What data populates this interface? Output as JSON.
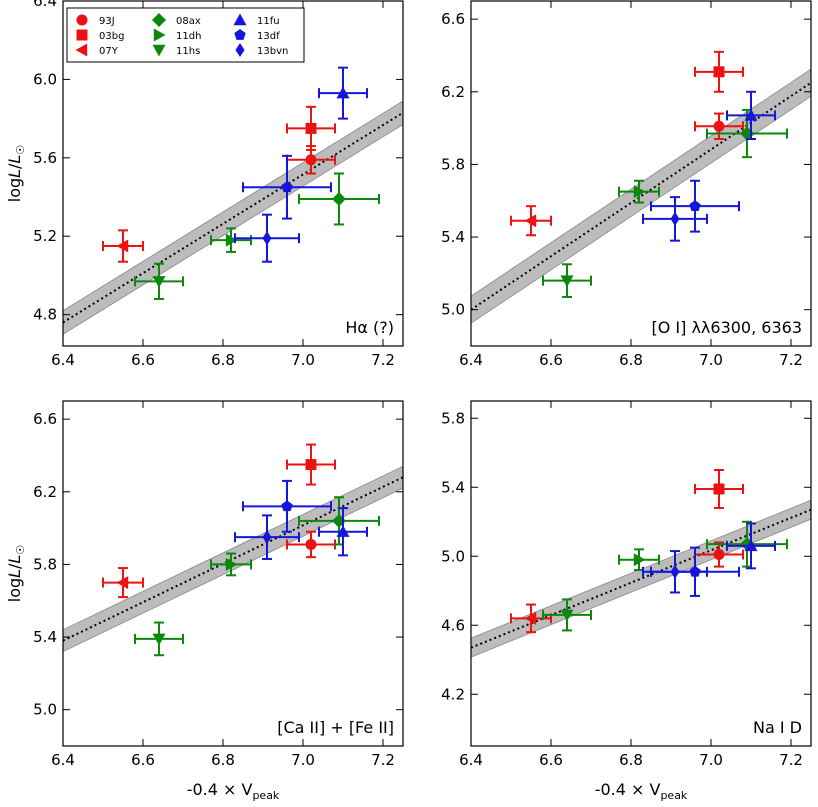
{
  "chart_data": {
    "type": "scatter",
    "xlabel": "-0.4 × V",
    "xlabel_sub": "peak",
    "ylabel": "log",
    "ylabel_L": "L",
    "ylabel_sep": "/",
    "ylabel_Lsun": "L",
    "ylabel_sun_sub": "☉",
    "xlim": [
      6.4,
      7.25
    ],
    "xticks": [
      6.4,
      6.6,
      6.8,
      7.0,
      7.2
    ],
    "colors": {
      "red": "#ee1111",
      "green": "#0d870d",
      "blue": "#1515dd",
      "band": "#b5b5b5",
      "fit": "#000000"
    },
    "legend": [
      {
        "label": "93J",
        "marker": "circle",
        "color": "#ee1111"
      },
      {
        "label": "03bg",
        "marker": "square",
        "color": "#ee1111"
      },
      {
        "label": "07Y",
        "marker": "tri-left",
        "color": "#ee1111"
      },
      {
        "label": "08ax",
        "marker": "diamond",
        "color": "#0d870d"
      },
      {
        "label": "11dh",
        "marker": "tri-right",
        "color": "#0d870d"
      },
      {
        "label": "11hs",
        "marker": "tri-down",
        "color": "#0d870d"
      },
      {
        "label": "11fu",
        "marker": "tri-up",
        "color": "#1515dd"
      },
      {
        "label": "13df",
        "marker": "pentagon",
        "color": "#1515dd"
      },
      {
        "label": "13bvn",
        "marker": "thin-diamond",
        "color": "#1515dd"
      }
    ],
    "panels": [
      {
        "label": "Hα (?)",
        "ylim": [
          4.64,
          6.4
        ],
        "yticks": [
          4.8,
          5.2,
          5.6,
          6.0,
          6.4
        ],
        "fit": {
          "x": [
            6.4,
            7.25
          ],
          "y": [
            4.76,
            5.83
          ]
        },
        "band_half_width": 0.06,
        "points": [
          {
            "sn": "93J",
            "x": 7.02,
            "y": 5.59,
            "xerr": 0.06,
            "yerr": 0.07
          },
          {
            "sn": "03bg",
            "x": 7.02,
            "y": 5.75,
            "xerr": 0.06,
            "yerr": 0.11
          },
          {
            "sn": "07Y",
            "x": 6.55,
            "y": 5.15,
            "xerr": 0.05,
            "yerr": 0.08
          },
          {
            "sn": "08ax",
            "x": 7.09,
            "y": 5.39,
            "xerr": 0.1,
            "yerr": 0.13
          },
          {
            "sn": "11dh",
            "x": 6.82,
            "y": 5.18,
            "xerr": 0.05,
            "yerr": 0.06
          },
          {
            "sn": "11hs",
            "x": 6.64,
            "y": 4.97,
            "xerr": 0.06,
            "yerr": 0.09
          },
          {
            "sn": "11fu",
            "x": 7.1,
            "y": 5.93,
            "xerr": 0.06,
            "yerr": 0.13
          },
          {
            "sn": "13df",
            "x": 6.96,
            "y": 5.45,
            "xerr": 0.11,
            "yerr": 0.16
          },
          {
            "sn": "13bvn",
            "x": 6.91,
            "y": 5.19,
            "xerr": 0.08,
            "yerr": 0.12
          }
        ]
      },
      {
        "label": "[O I] λλ6300, 6363",
        "ylim": [
          4.8,
          6.7
        ],
        "yticks": [
          5.0,
          5.4,
          5.8,
          6.2,
          6.6
        ],
        "fit": {
          "x": [
            6.4,
            7.25
          ],
          "y": [
            5.0,
            6.25
          ]
        },
        "band_half_width": 0.075,
        "points": [
          {
            "sn": "93J",
            "x": 7.02,
            "y": 6.01,
            "xerr": 0.06,
            "yerr": 0.07
          },
          {
            "sn": "03bg",
            "x": 7.02,
            "y": 6.31,
            "xerr": 0.06,
            "yerr": 0.11
          },
          {
            "sn": "07Y",
            "x": 6.55,
            "y": 5.49,
            "xerr": 0.05,
            "yerr": 0.08
          },
          {
            "sn": "08ax",
            "x": 7.09,
            "y": 5.97,
            "xerr": 0.1,
            "yerr": 0.13
          },
          {
            "sn": "11dh",
            "x": 6.82,
            "y": 5.65,
            "xerr": 0.05,
            "yerr": 0.06
          },
          {
            "sn": "11hs",
            "x": 6.64,
            "y": 5.16,
            "xerr": 0.06,
            "yerr": 0.09
          },
          {
            "sn": "11fu",
            "x": 7.1,
            "y": 6.07,
            "xerr": 0.06,
            "yerr": 0.13
          },
          {
            "sn": "13df",
            "x": 6.96,
            "y": 5.57,
            "xerr": 0.11,
            "yerr": 0.14
          },
          {
            "sn": "13bvn",
            "x": 6.91,
            "y": 5.5,
            "xerr": 0.08,
            "yerr": 0.12
          }
        ]
      },
      {
        "label": "[Ca II] + [Fe II]",
        "ylim": [
          4.8,
          6.7
        ],
        "yticks": [
          5.0,
          5.4,
          5.8,
          6.2,
          6.6
        ],
        "fit": {
          "x": [
            6.4,
            7.25
          ],
          "y": [
            5.38,
            6.28
          ]
        },
        "band_half_width": 0.06,
        "points": [
          {
            "sn": "93J",
            "x": 7.02,
            "y": 5.91,
            "xerr": 0.06,
            "yerr": 0.07
          },
          {
            "sn": "03bg",
            "x": 7.02,
            "y": 6.35,
            "xerr": 0.06,
            "yerr": 0.11
          },
          {
            "sn": "07Y",
            "x": 6.55,
            "y": 5.7,
            "xerr": 0.05,
            "yerr": 0.08
          },
          {
            "sn": "08ax",
            "x": 7.09,
            "y": 6.04,
            "xerr": 0.1,
            "yerr": 0.13
          },
          {
            "sn": "11dh",
            "x": 6.82,
            "y": 5.8,
            "xerr": 0.05,
            "yerr": 0.06
          },
          {
            "sn": "11hs",
            "x": 6.64,
            "y": 5.39,
            "xerr": 0.06,
            "yerr": 0.09
          },
          {
            "sn": "11fu",
            "x": 7.1,
            "y": 5.98,
            "xerr": 0.06,
            "yerr": 0.13
          },
          {
            "sn": "13df",
            "x": 6.96,
            "y": 6.12,
            "xerr": 0.11,
            "yerr": 0.14
          },
          {
            "sn": "13bvn",
            "x": 6.91,
            "y": 5.95,
            "xerr": 0.08,
            "yerr": 0.12
          }
        ]
      },
      {
        "label": "Na I D",
        "ylim": [
          3.9,
          5.9
        ],
        "yticks": [
          4.2,
          4.6,
          5.0,
          5.4,
          5.8
        ],
        "fit": {
          "x": [
            6.4,
            7.25
          ],
          "y": [
            4.47,
            5.27
          ]
        },
        "band_half_width": 0.055,
        "points": [
          {
            "sn": "93J",
            "x": 7.02,
            "y": 5.01,
            "xerr": 0.06,
            "yerr": 0.07
          },
          {
            "sn": "03bg",
            "x": 7.02,
            "y": 5.39,
            "xerr": 0.06,
            "yerr": 0.11
          },
          {
            "sn": "07Y",
            "x": 6.55,
            "y": 4.64,
            "xerr": 0.05,
            "yerr": 0.08
          },
          {
            "sn": "08ax",
            "x": 7.09,
            "y": 5.07,
            "xerr": 0.1,
            "yerr": 0.13
          },
          {
            "sn": "11dh",
            "x": 6.82,
            "y": 4.98,
            "xerr": 0.05,
            "yerr": 0.06
          },
          {
            "sn": "11hs",
            "x": 6.64,
            "y": 4.66,
            "xerr": 0.06,
            "yerr": 0.09
          },
          {
            "sn": "11fu",
            "x": 7.1,
            "y": 5.06,
            "xerr": 0.06,
            "yerr": 0.13
          },
          {
            "sn": "13df",
            "x": 6.96,
            "y": 4.91,
            "xerr": 0.11,
            "yerr": 0.14
          },
          {
            "sn": "13bvn",
            "x": 6.91,
            "y": 4.91,
            "xerr": 0.08,
            "yerr": 0.12
          }
        ]
      }
    ]
  }
}
